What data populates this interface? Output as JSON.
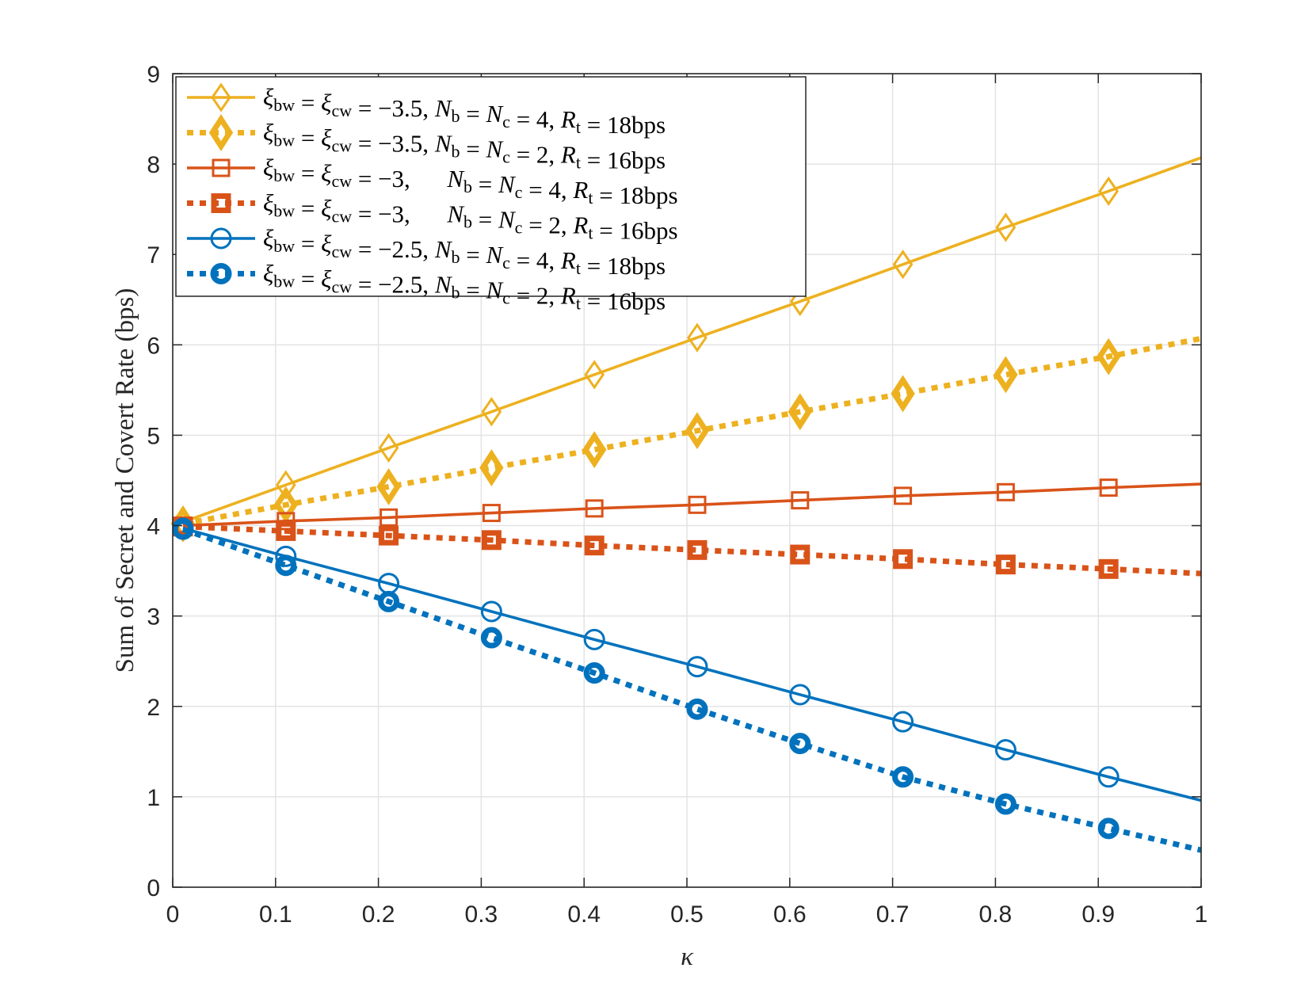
{
  "chart_data": {
    "type": "line",
    "title": "",
    "xlabel": "κ",
    "ylabel": "Sum of Secret and Covert Rate (bps)",
    "xlim": [
      0,
      1
    ],
    "ylim": [
      0,
      9
    ],
    "grid": true,
    "legend_position": "top-left",
    "x_ticks": [
      "0",
      "0.1",
      "0.2",
      "0.3",
      "0.4",
      "0.5",
      "0.6",
      "0.7",
      "0.8",
      "0.9",
      "1"
    ],
    "y_ticks": [
      "0",
      "1",
      "2",
      "3",
      "4",
      "5",
      "6",
      "7",
      "8",
      "9"
    ],
    "x": [
      0.01,
      0.11,
      0.21,
      0.31,
      0.41,
      0.51,
      0.61,
      0.71,
      0.81,
      0.91,
      1.0
    ],
    "series": [
      {
        "name": "ξbw = ξcw = −3.5, Nb = Nc = 4, Rt = 18bps",
        "color": "#EDB120",
        "line": "solid",
        "marker": "diamond",
        "values": [
          4.04,
          4.45,
          4.86,
          5.26,
          5.67,
          6.08,
          6.48,
          6.89,
          7.3,
          7.7,
          8.07
        ]
      },
      {
        "name": "ξbw = ξcw = −3.5, Nb = Nc = 2, Rt = 16bps",
        "color": "#EDB120",
        "line": "dotted",
        "marker": "diamond",
        "values": [
          4.02,
          4.23,
          4.43,
          4.64,
          4.84,
          5.05,
          5.26,
          5.46,
          5.67,
          5.87,
          6.07
        ]
      },
      {
        "name": "ξbw = ξcw = −3, Nb = Nc = 4, Rt = 18bps",
        "color": "#D95319",
        "line": "solid",
        "marker": "square",
        "values": [
          4.0,
          4.05,
          4.09,
          4.14,
          4.19,
          4.23,
          4.28,
          4.33,
          4.37,
          4.42,
          4.46
        ]
      },
      {
        "name": "ξbw = ξcw = −3, Nb = Nc = 2, Rt = 16bps",
        "color": "#D95319",
        "line": "dotted",
        "marker": "square",
        "values": [
          3.99,
          3.94,
          3.89,
          3.84,
          3.78,
          3.73,
          3.68,
          3.63,
          3.57,
          3.52,
          3.47
        ]
      },
      {
        "name": "ξbw = ξcw = −2.5, Nb = Nc = 4, Rt = 18bps",
        "color": "#0072BD",
        "line": "solid",
        "marker": "circle",
        "values": [
          3.97,
          3.66,
          3.36,
          3.05,
          2.74,
          2.44,
          2.13,
          1.83,
          1.52,
          1.22,
          0.96
        ]
      },
      {
        "name": "ξbw = ξcw = −2.5, Nb = Nc = 2, Rt = 16bps",
        "color": "#0072BD",
        "line": "dotted",
        "marker": "circle",
        "values": [
          3.96,
          3.56,
          3.16,
          2.76,
          2.37,
          1.97,
          1.59,
          1.22,
          0.92,
          0.65,
          0.41
        ]
      }
    ]
  },
  "legend": [
    {
      "xi": "ξ",
      "bw": "bw",
      "eq1": " = ",
      "xi2": "ξ",
      "cw": "cw",
      "val": " = −3.5, ",
      "N": "N",
      "b": "b",
      "eq2": " = ",
      "N2": "N",
      "c": "c",
      "nval": " = 4, ",
      "R": "R",
      "t": "t",
      "rval": " = 18bps"
    },
    {
      "xi": "ξ",
      "bw": "bw",
      "eq1": " = ",
      "xi2": "ξ",
      "cw": "cw",
      "val": " = −3.5, ",
      "N": "N",
      "b": "b",
      "eq2": " = ",
      "N2": "N",
      "c": "c",
      "nval": " = 2, ",
      "R": "R",
      "t": "t",
      "rval": " = 16bps"
    },
    {
      "xi": "ξ",
      "bw": "bw",
      "eq1": " = ",
      "xi2": "ξ",
      "cw": "cw",
      "val": " = −3,      ",
      "N": "N",
      "b": "b",
      "eq2": " = ",
      "N2": "N",
      "c": "c",
      "nval": " = 4, ",
      "R": "R",
      "t": "t",
      "rval": " = 18bps"
    },
    {
      "xi": "ξ",
      "bw": "bw",
      "eq1": " = ",
      "xi2": "ξ",
      "cw": "cw",
      "val": " = −3,      ",
      "N": "N",
      "b": "b",
      "eq2": " = ",
      "N2": "N",
      "c": "c",
      "nval": " = 2, ",
      "R": "R",
      "t": "t",
      "rval": " = 16bps"
    },
    {
      "xi": "ξ",
      "bw": "bw",
      "eq1": " = ",
      "xi2": "ξ",
      "cw": "cw",
      "val": " = −2.5, ",
      "N": "N",
      "b": "b",
      "eq2": " = ",
      "N2": "N",
      "c": "c",
      "nval": " = 4, ",
      "R": "R",
      "t": "t",
      "rval": " = 18bps"
    },
    {
      "xi": "ξ",
      "bw": "bw",
      "eq1": " = ",
      "xi2": "ξ",
      "cw": "cw",
      "val": " = −2.5, ",
      "N": "N",
      "b": "b",
      "eq2": " = ",
      "N2": "N",
      "c": "c",
      "nval": " = 2, ",
      "R": "R",
      "t": "t",
      "rval": " = 16bps"
    }
  ]
}
